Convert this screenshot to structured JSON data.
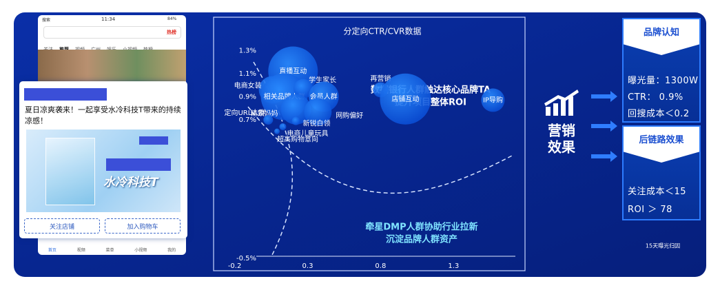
{
  "phone": {
    "status_left": "搜索",
    "time": "11:34",
    "battery": "84%",
    "search_tag": "热榜",
    "tabs": [
      "关注",
      "推荐",
      "视频",
      "广州",
      "娱乐",
      "小视频",
      "热榜"
    ],
    "nav": [
      "首页",
      "视频",
      "菜单",
      "小视频",
      "我的"
    ]
  },
  "ad_card": {
    "text": "夏日凉爽袭来！一起享受水冷科技T带来的持续凉感！",
    "image_text": "水冷科技T",
    "buttons": [
      "关注店铺",
      "加入购物车"
    ]
  },
  "chart_data": {
    "type": "bubble",
    "title": "分定向CTR/CVR数据",
    "color": "#2a8cff",
    "labels": [
      "直播互动",
      "电商女装",
      "相关品牌人群",
      "学生家长",
      "会员人群",
      "精致妈妈",
      "网购偏好",
      "定向URL人群",
      "新锐白领",
      "电商儿童玩具",
      "超高购物意向",
      "再营销",
      "店铺互动",
      "IP导购"
    ],
    "x": [
      0.2,
      0.06,
      0.14,
      0.27,
      0.41,
      0.22,
      0.37,
      0.03,
      0.22,
      0.13,
      0.09,
      0.8,
      0.97,
      1.57
    ],
    "values": [
      1.12,
      0.96,
      0.9,
      0.97,
      0.9,
      0.79,
      0.77,
      0.7,
      0.69,
      0.64,
      0.6,
      0.96,
      0.88,
      0.87
    ],
    "sizes": [
      36,
      20,
      34,
      14,
      22,
      22,
      20,
      7,
      6,
      5,
      4,
      11,
      37,
      17
    ],
    "xlim": [
      -0.25,
      1.7
    ],
    "xticks": [
      -0.2,
      0.3,
      0.8,
      1.3
    ],
    "ylim": [
      -0.5,
      1.35
    ],
    "yticks": [
      {
        "value": 1.3,
        "label": "1.3%"
      },
      {
        "value": 1.1,
        "label": "1.1%"
      },
      {
        "value": 0.9,
        "label": "0.9%"
      },
      {
        "value": 0.7,
        "label": "0.7%"
      },
      {
        "value": -0.5,
        "label": "-0.5%"
      }
    ],
    "annotations": [
      "数据银行人群触达核心品牌TA",
      "提升项目整体ROI",
      "牵星DMP人群协助行业拉新",
      "沉淀品牌人群资产"
    ]
  },
  "effect": {
    "title_lines": [
      "营销",
      "效果"
    ],
    "brand": {
      "title": "品牌认知",
      "items": [
        "曝光量：1300W",
        "CTR： 0.9%",
        "回搜成本＜0.2"
      ]
    },
    "conversion": {
      "title": "后链路效果",
      "items": [
        "关注成本＜15",
        "ROI ＞ 78"
      ]
    },
    "note": "15天曝光归因"
  }
}
